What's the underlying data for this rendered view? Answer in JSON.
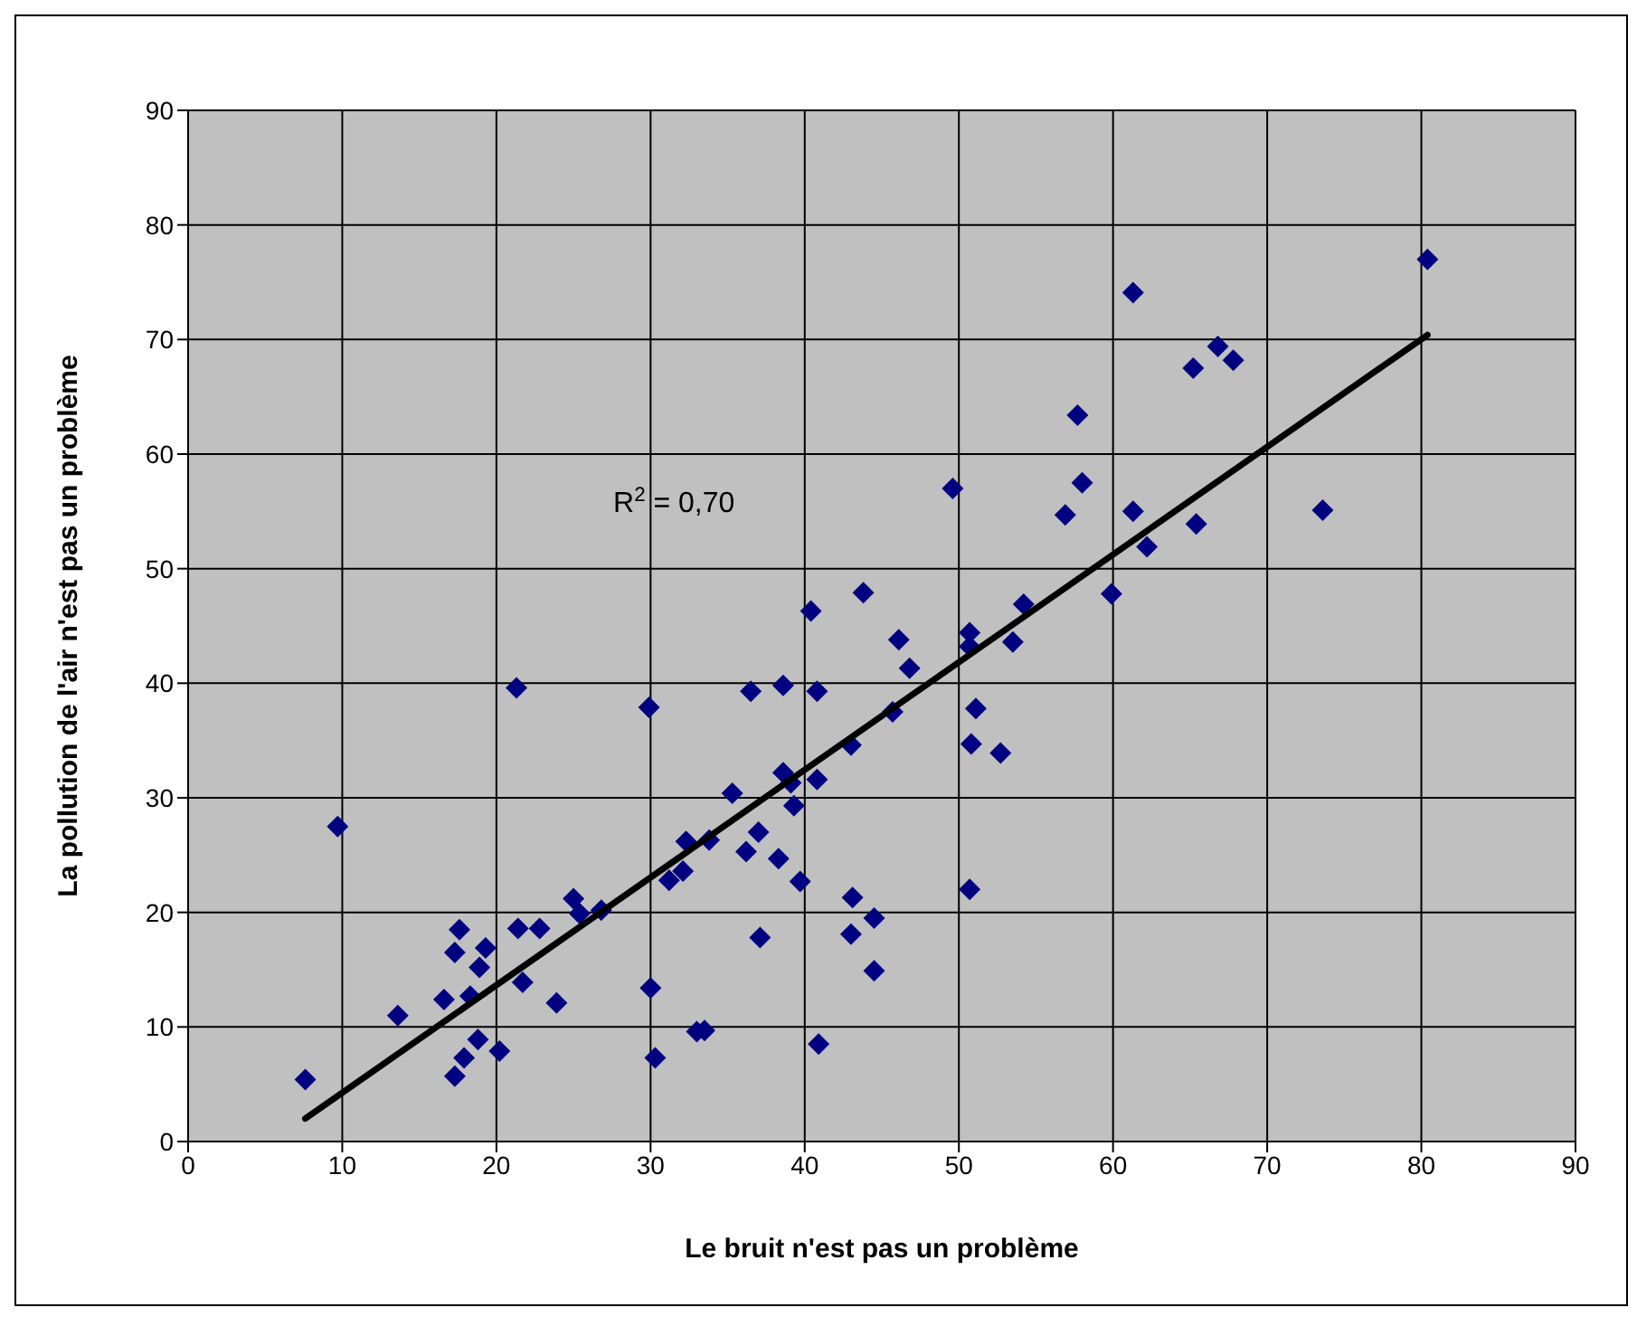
{
  "chart_data": {
    "type": "scatter",
    "xlabel": "Le bruit n'est pas un problème",
    "ylabel": "La pollution de l'air n'est pas un problème",
    "annotations": [
      "R$^{2}$ = 0,70"
    ],
    "xlim": [
      0,
      90
    ],
    "ylim": [
      0,
      90
    ],
    "xticks": [
      0,
      10,
      20,
      30,
      40,
      50,
      60,
      70,
      80,
      90
    ],
    "yticks": [
      0,
      10,
      20,
      30,
      40,
      50,
      60,
      70,
      80,
      90
    ],
    "grid": true,
    "series": [
      {
        "type": "scatter",
        "marker": "diamond",
        "color": "#000080",
        "x": [
          7.6,
          9.7,
          13.6,
          21.3,
          29.9,
          16.6,
          17.3,
          17.6,
          17.3,
          17.9,
          18.3,
          18.8,
          18.9,
          19.3,
          20.2,
          21.4,
          21.7,
          22.8,
          23.9,
          25.0,
          25.4,
          26.8,
          30.0,
          30.3,
          31.2,
          32.3,
          32.1,
          33.8,
          33.0,
          33.5,
          35.3,
          36.2,
          36.5,
          37.0,
          37.1,
          38.3,
          38.6,
          38.6,
          39.1,
          39.3,
          39.7,
          40.4,
          40.8,
          40.8,
          40.9,
          43.0,
          43.1,
          43.0,
          43.8,
          44.5,
          44.5,
          46.1,
          46.8,
          45.7,
          49.6,
          50.7,
          50.7,
          51.1,
          50.8,
          50.7,
          52.7,
          53.5,
          54.2,
          56.9,
          58.0,
          57.7,
          59.9,
          61.3,
          61.3,
          62.2,
          65.4,
          65.2,
          66.8,
          67.8,
          73.6,
          80.4
        ],
        "values": [
          5.4,
          27.5,
          11.0,
          39.6,
          37.9,
          12.4,
          16.5,
          18.5,
          5.7,
          7.3,
          12.7,
          8.9,
          15.2,
          16.9,
          7.9,
          18.6,
          13.9,
          18.6,
          12.1,
          21.2,
          19.9,
          20.2,
          13.4,
          7.3,
          22.8,
          26.2,
          23.6,
          26.3,
          9.6,
          9.7,
          30.4,
          25.3,
          39.3,
          27.0,
          17.8,
          24.7,
          39.8,
          32.2,
          31.3,
          29.3,
          22.7,
          46.3,
          39.3,
          31.6,
          8.5,
          34.6,
          21.3,
          18.1,
          47.9,
          19.5,
          14.9,
          43.8,
          41.3,
          37.5,
          57.0,
          44.4,
          43.2,
          37.8,
          34.7,
          22.0,
          33.9,
          43.6,
          46.9,
          54.7,
          57.5,
          63.4,
          47.8,
          55.0,
          74.1,
          51.9,
          53.9,
          67.5,
          69.4,
          68.2,
          55.1,
          77.0
        ]
      },
      {
        "type": "line",
        "marker": "none",
        "line_style": "solid",
        "color": "#000000",
        "x": [
          7.6,
          80.4
        ],
        "values": [
          2.0,
          70.4
        ]
      }
    ]
  }
}
